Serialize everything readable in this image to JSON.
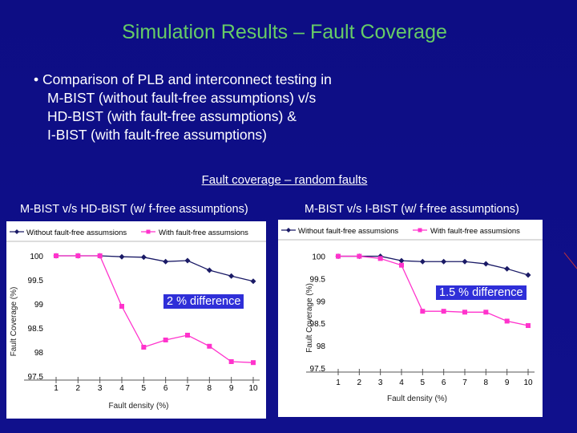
{
  "slide": {
    "title": "Simulation Results – Fault Coverage",
    "bullet_lines": [
      "• Comparison of PLB and interconnect testing in",
      "M-BIST (without fault-free assumptions) v/s",
      "HD-BIST (with fault-free assumptions) &",
      "I-BIST (with fault-free assumptions)"
    ],
    "subheading": "Fault coverage – random faults",
    "chart_titles": [
      "M-BIST v/s HD-BIST (w/ f-free assumptions)",
      "M-BIST v/s I-BIST (w/ f-free assumptions)"
    ],
    "callouts": [
      "2 % difference",
      "1.5 % difference"
    ]
  },
  "colors": {
    "background": "#10108a",
    "title": "#66cc66",
    "series1": "#1a1a66",
    "series2": "#ff33cc",
    "callout": "#2f2fd8"
  },
  "chart_data": [
    {
      "type": "line",
      "title": "M-BIST v/s HD-BIST (w/ f-free assumptions)",
      "xlabel": "Fault density (%)",
      "ylabel": "Fault Coverage (%)",
      "x": [
        1,
        2,
        3,
        4,
        5,
        6,
        7,
        8,
        9,
        10
      ],
      "x_ticks": [
        "1",
        "2",
        "3",
        "4",
        "5",
        "6",
        "7",
        "8",
        "9",
        "10"
      ],
      "y_ticks": [
        "100",
        "99.5",
        "99",
        "98.5",
        "98",
        "97.5"
      ],
      "ylim": [
        97.5,
        100.1
      ],
      "legend": "top",
      "series": [
        {
          "name": "Without fault-free assumsions",
          "values": [
            100,
            100,
            100,
            99.98,
            99.97,
            99.88,
            99.9,
            99.7,
            99.58,
            99.47
          ]
        },
        {
          "name": "With fault-free assumsions",
          "values": [
            100,
            100,
            100,
            98.95,
            98.1,
            98.25,
            98.35,
            98.12,
            97.8,
            97.78
          ]
        }
      ]
    },
    {
      "type": "line",
      "title": "M-BIST v/s I-BIST (w/ f-free assumptions)",
      "xlabel": "Fault density (%)",
      "ylabel": "Fault Coverage (%)",
      "x": [
        1,
        2,
        3,
        4,
        5,
        6,
        7,
        8,
        9,
        10
      ],
      "x_ticks": [
        "1",
        "2",
        "3",
        "4",
        "5",
        "6",
        "7",
        "8",
        "9",
        "10"
      ],
      "y_ticks": [
        "100",
        "99.5",
        "99",
        "98.5",
        "98",
        "97.5"
      ],
      "ylim": [
        97.5,
        100.1
      ],
      "legend": "top",
      "series": [
        {
          "name": "Without fault-free assumsions",
          "values": [
            100,
            100,
            100,
            99.9,
            99.88,
            99.88,
            99.88,
            99.83,
            99.72,
            99.58
          ]
        },
        {
          "name": "With fault-free assumsions",
          "values": [
            100,
            100,
            99.95,
            99.8,
            98.77,
            98.77,
            98.75,
            98.75,
            98.55,
            98.45
          ]
        }
      ]
    }
  ]
}
